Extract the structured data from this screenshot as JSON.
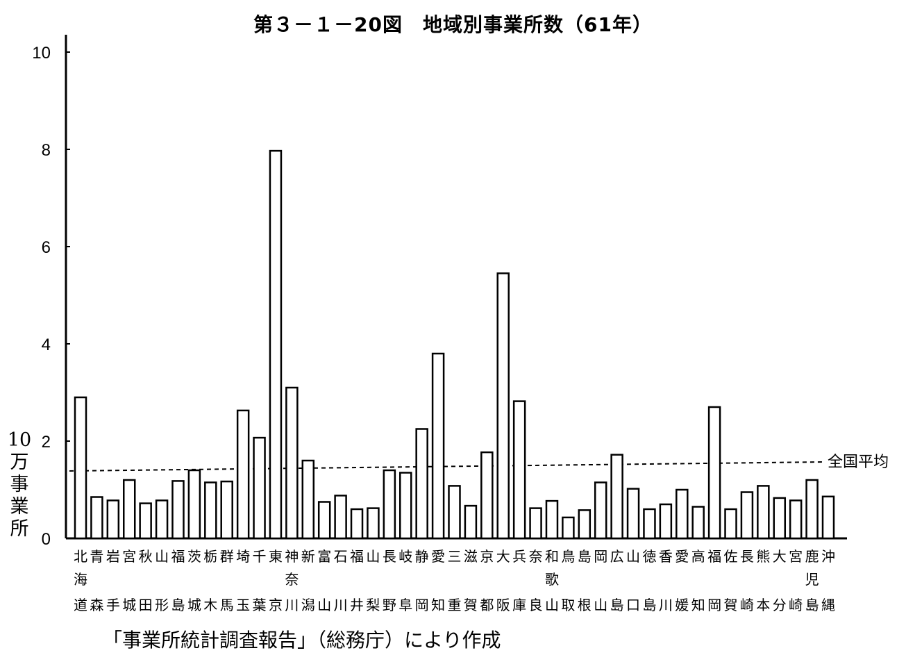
{
  "chart_data": {
    "type": "bar",
    "title": "第３－１－20図　地域別事業所数（61年）",
    "ylabel": "10万事業所",
    "ylim": [
      0,
      10
    ],
    "yticks": [
      "0",
      "2",
      "4",
      "6",
      "8",
      "10"
    ],
    "grid": false,
    "categories": [
      "北海道",
      "青森",
      "岩手",
      "宮城",
      "秋田",
      "山形",
      "福島",
      "茨城",
      "栃木",
      "群馬",
      "埼玉",
      "千葉",
      "東京",
      "神奈川",
      "新潟",
      "富山",
      "石川",
      "福井",
      "山梨",
      "長野",
      "岐阜",
      "静岡",
      "愛知",
      "三重",
      "滋賀",
      "京都",
      "大阪",
      "兵庫",
      "奈良",
      "和歌山",
      "鳥取",
      "島根",
      "岡山",
      "広島",
      "山口",
      "徳島",
      "香川",
      "愛媛",
      "高知",
      "福岡",
      "佐賀",
      "長崎",
      "熊本",
      "大分",
      "宮崎",
      "鹿児島",
      "沖縄"
    ],
    "values": [
      2.9,
      0.85,
      0.78,
      1.2,
      0.72,
      0.78,
      1.18,
      1.4,
      1.15,
      1.17,
      2.63,
      2.07,
      7.97,
      3.1,
      1.6,
      0.75,
      0.88,
      0.6,
      0.62,
      1.4,
      1.35,
      2.25,
      3.8,
      1.08,
      0.67,
      1.77,
      5.45,
      2.82,
      0.62,
      0.77,
      0.43,
      0.58,
      1.15,
      1.72,
      1.02,
      0.6,
      0.7,
      1.0,
      0.65,
      2.7,
      0.6,
      0.95,
      1.08,
      0.83,
      0.78,
      1.2,
      0.86
    ],
    "reference_line": {
      "label": "全国平均",
      "value": 1.5,
      "style": "dashed"
    }
  },
  "footer": {
    "source": "「事業所統計調査報告」（総務庁）により作成"
  }
}
